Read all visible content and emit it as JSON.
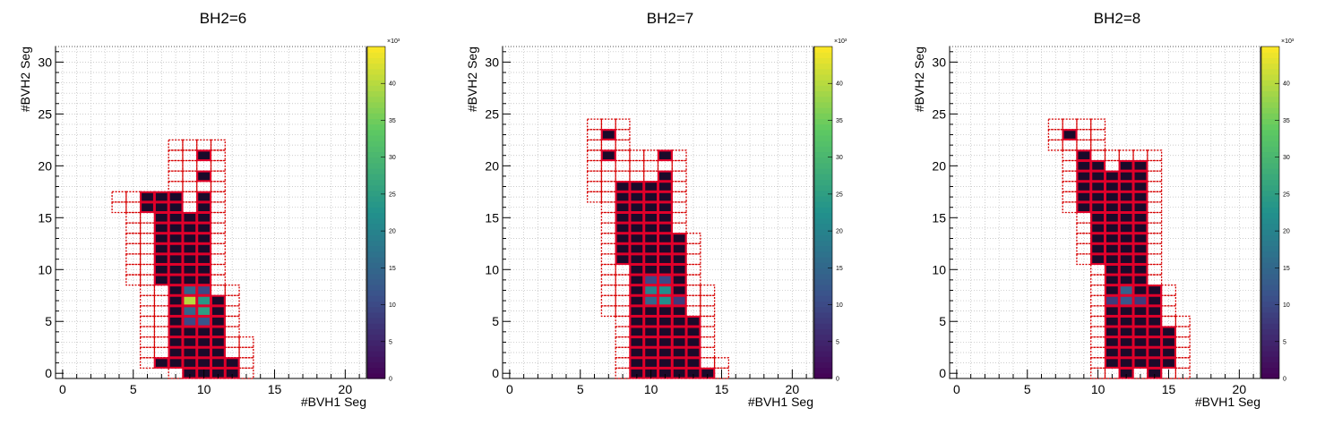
{
  "chart_data": [
    {
      "type": "heatmap",
      "title": "BH2=6",
      "xlabel": "#BVH1 Seg",
      "ylabel": "#BVH2 Seg",
      "xlim": [
        -0.5,
        21.5
      ],
      "ylim": [
        -0.5,
        31.5
      ],
      "x_ticks": [
        "0",
        "5",
        "10",
        "15",
        "20"
      ],
      "y_ticks": [
        "0",
        "5",
        "10",
        "15",
        "20",
        "25",
        "30"
      ],
      "z_ticks": [
        "0",
        "5",
        "10",
        "15",
        "20",
        "25",
        "30",
        "35",
        "40"
      ],
      "z_exponent": "×10³",
      "zlim": [
        0,
        45
      ],
      "colormap": "viridis",
      "grid": true,
      "cells": {
        "0": [
          9,
          10,
          11,
          12
        ],
        "1": [
          7,
          8,
          9,
          10,
          11,
          12
        ],
        "2": [
          8,
          9,
          10,
          11
        ],
        "3": [
          8,
          9,
          10,
          11
        ],
        "4": [
          8,
          9,
          10,
          11
        ],
        "5": [
          8,
          9,
          10,
          11
        ],
        "6": [
          8,
          9,
          10,
          11
        ],
        "7": [
          8,
          9,
          10,
          11
        ],
        "8": [
          8,
          9,
          10
        ],
        "9": [
          7,
          8,
          9,
          10
        ],
        "10": [
          7,
          8,
          9,
          10
        ],
        "11": [
          7,
          8,
          9,
          10
        ],
        "12": [
          7,
          8,
          9,
          10
        ],
        "13": [
          7,
          8,
          9,
          10
        ],
        "14": [
          7,
          8,
          9,
          10
        ],
        "15": [
          7,
          8,
          9,
          10
        ],
        "16": [
          6,
          7,
          8,
          10
        ],
        "17": [
          6,
          7,
          8,
          10
        ],
        "19": [
          10
        ],
        "21": [
          10
        ]
      },
      "hot": {
        "9,5": 10,
        "9,6": 15,
        "9,7": 40,
        "9,8": 15,
        "10,5": 12,
        "10,6": 25,
        "10,7": 24,
        "10,8": 10
      },
      "outline": [
        [
          0,
          8,
          13
        ],
        [
          1,
          6,
          13
        ],
        [
          2,
          6,
          13
        ],
        [
          3,
          6,
          13
        ],
        [
          4,
          6,
          12
        ],
        [
          5,
          6,
          12
        ],
        [
          6,
          6,
          12
        ],
        [
          7,
          6,
          12
        ],
        [
          8,
          6,
          12
        ],
        [
          9,
          5,
          11
        ],
        [
          10,
          5,
          11
        ],
        [
          11,
          5,
          11
        ],
        [
          12,
          5,
          11
        ],
        [
          13,
          5,
          11
        ],
        [
          14,
          5,
          11
        ],
        [
          15,
          5,
          11
        ],
        [
          16,
          4,
          11
        ],
        [
          17,
          4,
          11
        ],
        [
          18,
          8,
          11
        ],
        [
          19,
          8,
          11
        ],
        [
          20,
          8,
          11
        ],
        [
          21,
          8,
          11
        ],
        [
          22,
          8,
          11
        ]
      ]
    },
    {
      "type": "heatmap",
      "title": "BH2=7",
      "xlabel": "#BVH1 Seg",
      "ylabel": "#BVH2 Seg",
      "xlim": [
        -0.5,
        21.5
      ],
      "ylim": [
        -0.5,
        31.5
      ],
      "x_ticks": [
        "0",
        "5",
        "10",
        "15",
        "20"
      ],
      "y_ticks": [
        "0",
        "5",
        "10",
        "15",
        "20",
        "25",
        "30"
      ],
      "z_ticks": [
        "0",
        "5",
        "10",
        "15",
        "20",
        "25",
        "30",
        "35",
        "40"
      ],
      "z_exponent": "×10³",
      "zlim": [
        0,
        45
      ],
      "colormap": "viridis",
      "grid": true,
      "cells": {
        "0": [
          9,
          10,
          11,
          12,
          13,
          14
        ],
        "1": [
          9,
          10,
          11,
          12,
          13
        ],
        "2": [
          9,
          10,
          11,
          12,
          13
        ],
        "3": [
          9,
          10,
          11,
          12,
          13
        ],
        "4": [
          9,
          10,
          11,
          12,
          13
        ],
        "5": [
          9,
          10,
          11,
          12,
          13
        ],
        "6": [
          9,
          10,
          11,
          12
        ],
        "7": [
          9,
          10,
          11,
          12
        ],
        "8": [
          9,
          10,
          11,
          12
        ],
        "9": [
          9,
          10,
          11,
          12
        ],
        "10": [
          9,
          10,
          11,
          12
        ],
        "11": [
          8,
          9,
          10,
          11,
          12
        ],
        "12": [
          8,
          9,
          10,
          11,
          12
        ],
        "13": [
          8,
          9,
          10,
          11,
          12
        ],
        "14": [
          8,
          9,
          10,
          11
        ],
        "15": [
          8,
          9,
          10,
          11
        ],
        "16": [
          8,
          9,
          10,
          11
        ],
        "17": [
          8,
          9,
          10,
          11
        ],
        "18": [
          8,
          9,
          10,
          11
        ],
        "19": [
          11
        ],
        "21": [
          7,
          11
        ],
        "23": [
          7
        ]
      },
      "hot": {
        "10,7": 15,
        "10,8": 20,
        "10,9": 10,
        "11,7": 22,
        "11,8": 22,
        "11,9": 10,
        "12,7": 8
      },
      "outline": [
        [
          0,
          8,
          15
        ],
        [
          1,
          8,
          15
        ],
        [
          2,
          8,
          14
        ],
        [
          3,
          8,
          14
        ],
        [
          4,
          8,
          14
        ],
        [
          5,
          8,
          14
        ],
        [
          6,
          7,
          14
        ],
        [
          7,
          7,
          14
        ],
        [
          8,
          7,
          14
        ],
        [
          9,
          7,
          13
        ],
        [
          10,
          7,
          13
        ],
        [
          11,
          7,
          13
        ],
        [
          12,
          7,
          13
        ],
        [
          13,
          7,
          13
        ],
        [
          14,
          7,
          12
        ],
        [
          15,
          7,
          12
        ],
        [
          16,
          7,
          12
        ],
        [
          17,
          6,
          12
        ],
        [
          18,
          6,
          12
        ],
        [
          19,
          6,
          12
        ],
        [
          20,
          6,
          12
        ],
        [
          21,
          6,
          12
        ],
        [
          22,
          6,
          8
        ],
        [
          23,
          6,
          8
        ],
        [
          24,
          6,
          8
        ]
      ]
    },
    {
      "type": "heatmap",
      "title": "BH2=8",
      "xlabel": "#BVH1 Seg",
      "ylabel": "#BVH2 Seg",
      "xlim": [
        -0.5,
        21.5
      ],
      "ylim": [
        -0.5,
        31.5
      ],
      "x_ticks": [
        "0",
        "5",
        "10",
        "15",
        "20"
      ],
      "y_ticks": [
        "0",
        "5",
        "10",
        "15",
        "20",
        "25",
        "30"
      ],
      "z_ticks": [
        "0",
        "5",
        "10",
        "15",
        "20",
        "25",
        "30",
        "35",
        "40"
      ],
      "z_exponent": "×10³",
      "zlim": [
        0,
        45
      ],
      "colormap": "viridis",
      "grid": true,
      "cells": {
        "0": [
          12,
          14
        ],
        "1": [
          11,
          12,
          13,
          14,
          15
        ],
        "2": [
          11,
          12,
          13,
          14,
          15
        ],
        "3": [
          11,
          12,
          13,
          14,
          15
        ],
        "4": [
          11,
          12,
          13,
          14,
          15
        ],
        "5": [
          11,
          12,
          13,
          14
        ],
        "6": [
          11,
          12,
          13,
          14
        ],
        "7": [
          11,
          12,
          13,
          14
        ],
        "8": [
          11,
          12,
          13,
          14
        ],
        "9": [
          11,
          12,
          13
        ],
        "10": [
          11,
          12,
          13
        ],
        "11": [
          10,
          11,
          12,
          13
        ],
        "12": [
          10,
          11,
          12,
          13
        ],
        "13": [
          10,
          11,
          12,
          13
        ],
        "14": [
          10,
          11,
          12,
          13
        ],
        "15": [
          10,
          11,
          12,
          13
        ],
        "16": [
          9,
          10,
          11,
          12,
          13
        ],
        "17": [
          9,
          10,
          11,
          12,
          13
        ],
        "18": [
          9,
          10,
          11,
          12,
          13
        ],
        "19": [
          9,
          10,
          11,
          12,
          13
        ],
        "20": [
          9,
          10,
          12,
          13
        ],
        "21": [
          9
        ],
        "23": [
          8
        ]
      },
      "hot": {
        "11,7": 8,
        "12,7": 12,
        "12,8": 14,
        "13,7": 8
      },
      "outline": [
        [
          0,
          10,
          16
        ],
        [
          1,
          10,
          16
        ],
        [
          2,
          10,
          16
        ],
        [
          3,
          10,
          16
        ],
        [
          4,
          10,
          16
        ],
        [
          5,
          10,
          16
        ],
        [
          6,
          10,
          15
        ],
        [
          7,
          10,
          15
        ],
        [
          8,
          10,
          15
        ],
        [
          9,
          10,
          14
        ],
        [
          10,
          10,
          14
        ],
        [
          11,
          9,
          14
        ],
        [
          12,
          9,
          14
        ],
        [
          13,
          9,
          14
        ],
        [
          14,
          9,
          14
        ],
        [
          15,
          9,
          14
        ],
        [
          16,
          8,
          14
        ],
        [
          17,
          8,
          14
        ],
        [
          18,
          8,
          14
        ],
        [
          19,
          8,
          14
        ],
        [
          20,
          8,
          14
        ],
        [
          21,
          8,
          14
        ],
        [
          22,
          7,
          10
        ],
        [
          23,
          7,
          10
        ],
        [
          24,
          7,
          10
        ]
      ]
    }
  ]
}
